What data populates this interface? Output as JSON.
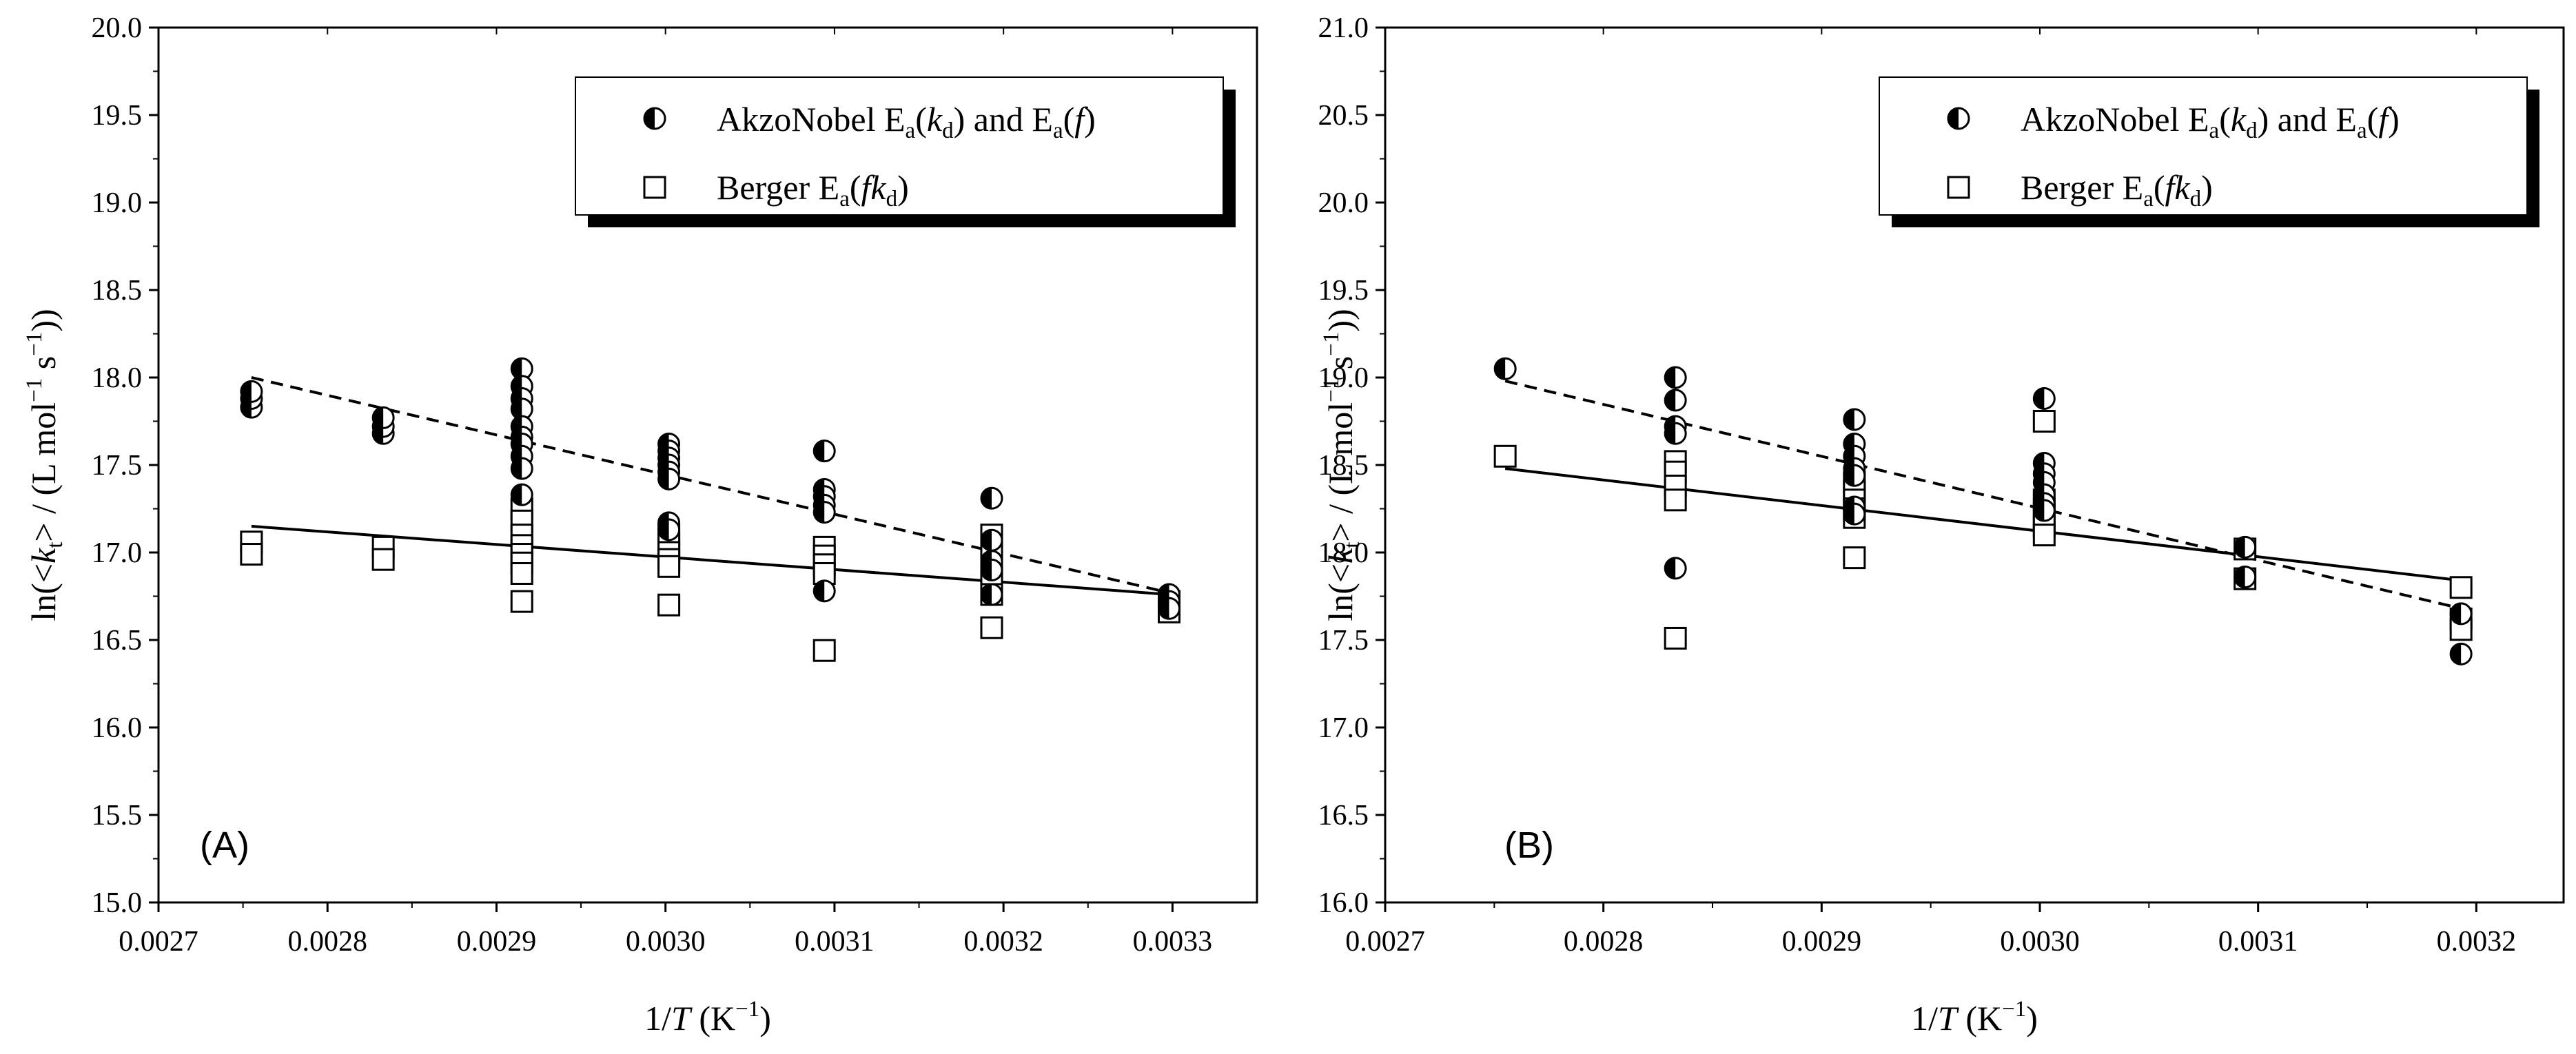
{
  "chart_data": [
    {
      "type": "scatter",
      "panel_label": "(A)",
      "xlabel": "1/T (K⁻¹)",
      "ylabel": "ln(<kt> / (L mol⁻¹ s⁻¹))",
      "xlim": [
        0.0027,
        0.00335
      ],
      "ylim": [
        15.0,
        20.0
      ],
      "x_ticks": [
        "0.0027",
        "0.0028",
        "0.0029",
        "0.0030",
        "0.0031",
        "0.0032",
        "0.0033"
      ],
      "y_ticks": [
        "15.0",
        "15.5",
        "16.0",
        "16.5",
        "17.0",
        "17.5",
        "18.0",
        "18.5",
        "19.0",
        "19.5",
        "20.0"
      ],
      "legend": [
        "AkzoNobel Ea(kd) and Ea(f)",
        "Berger Ea(fkd)"
      ],
      "legend_position": "top-right",
      "series": [
        {
          "name": "AkzoNobel Ea(kd) and Ea(f)",
          "marker": "half-filled-circle",
          "points": [
            [
              0.002755,
              17.83
            ],
            [
              0.002755,
              17.88
            ],
            [
              0.002755,
              17.92
            ],
            [
              0.002833,
              17.68
            ],
            [
              0.002833,
              17.72
            ],
            [
              0.002833,
              17.77
            ],
            [
              0.002915,
              18.05
            ],
            [
              0.002915,
              17.95
            ],
            [
              0.002915,
              17.88
            ],
            [
              0.002915,
              17.82
            ],
            [
              0.002915,
              17.72
            ],
            [
              0.002915,
              17.66
            ],
            [
              0.002915,
              17.62
            ],
            [
              0.002915,
              17.55
            ],
            [
              0.002915,
              17.48
            ],
            [
              0.002915,
              17.33
            ],
            [
              0.003002,
              17.62
            ],
            [
              0.003002,
              17.58
            ],
            [
              0.003002,
              17.54
            ],
            [
              0.003002,
              17.5
            ],
            [
              0.003002,
              17.46
            ],
            [
              0.003002,
              17.42
            ],
            [
              0.003002,
              17.17
            ],
            [
              0.003002,
              17.13
            ],
            [
              0.003094,
              17.58
            ],
            [
              0.003094,
              17.36
            ],
            [
              0.003094,
              17.32
            ],
            [
              0.003094,
              17.27
            ],
            [
              0.003094,
              17.23
            ],
            [
              0.003094,
              16.78
            ],
            [
              0.003193,
              17.31
            ],
            [
              0.003193,
              17.07
            ],
            [
              0.003193,
              16.95
            ],
            [
              0.003193,
              16.9
            ],
            [
              0.003193,
              16.76
            ],
            [
              0.003298,
              16.76
            ],
            [
              0.003298,
              16.72
            ],
            [
              0.003298,
              16.68
            ]
          ],
          "fit_line": {
            "style": "dashed",
            "x": [
              0.002755,
              0.003298
            ],
            "y": [
              18.0,
              16.77
            ]
          }
        },
        {
          "name": "Berger Ea(fkd)",
          "marker": "open-square",
          "points": [
            [
              0.002755,
              17.06
            ],
            [
              0.002755,
              16.99
            ],
            [
              0.002833,
              17.03
            ],
            [
              0.002833,
              16.96
            ],
            [
              0.002915,
              17.25
            ],
            [
              0.002915,
              17.18
            ],
            [
              0.002915,
              17.1
            ],
            [
              0.002915,
              17.04
            ],
            [
              0.002915,
              16.99
            ],
            [
              0.002915,
              16.94
            ],
            [
              0.002915,
              16.88
            ],
            [
              0.002915,
              16.72
            ],
            [
              0.003002,
              17.1
            ],
            [
              0.003002,
              17.05
            ],
            [
              0.003002,
              17.0
            ],
            [
              0.003002,
              16.96
            ],
            [
              0.003002,
              16.92
            ],
            [
              0.003002,
              16.7
            ],
            [
              0.003094,
              17.03
            ],
            [
              0.003094,
              16.98
            ],
            [
              0.003094,
              16.93
            ],
            [
              0.003094,
              16.88
            ],
            [
              0.003094,
              16.44
            ],
            [
              0.003193,
              17.1
            ],
            [
              0.003193,
              17.02
            ],
            [
              0.003193,
              16.88
            ],
            [
              0.003193,
              16.83
            ],
            [
              0.003193,
              16.76
            ],
            [
              0.003193,
              16.57
            ],
            [
              0.003298,
              16.72
            ],
            [
              0.003298,
              16.66
            ]
          ],
          "fit_line": {
            "style": "solid",
            "x": [
              0.002755,
              0.003298
            ],
            "y": [
              17.15,
              16.76
            ]
          }
        }
      ]
    },
    {
      "type": "scatter",
      "panel_label": "(B)",
      "xlabel": "1/T (K⁻¹)",
      "ylabel": "ln(<kt> / (L mol⁻¹ s⁻¹))",
      "xlim": [
        0.0027,
        0.00324
      ],
      "ylim": [
        16.0,
        21.0
      ],
      "x_ticks": [
        "0.0027",
        "0.0028",
        "0.0029",
        "0.0030",
        "0.0031",
        "0.0032"
      ],
      "y_ticks": [
        "16.0",
        "16.5",
        "17.0",
        "17.5",
        "18.0",
        "18.5",
        "19.0",
        "19.5",
        "20.0",
        "20.5",
        "21.0"
      ],
      "legend": [
        "AkzoNobel Ea(kd) and Ea(f)",
        "Berger Ea(fkd)"
      ],
      "legend_position": "top-right",
      "series": [
        {
          "name": "AkzoNobel Ea(kd) and Ea(f)",
          "marker": "half-filled-circle",
          "points": [
            [
              0.002755,
              19.05
            ],
            [
              0.002833,
              19.0
            ],
            [
              0.002833,
              18.87
            ],
            [
              0.002833,
              18.72
            ],
            [
              0.002833,
              18.68
            ],
            [
              0.002833,
              17.91
            ],
            [
              0.002915,
              18.76
            ],
            [
              0.002915,
              18.62
            ],
            [
              0.002915,
              18.55
            ],
            [
              0.002915,
              18.48
            ],
            [
              0.002915,
              18.44
            ],
            [
              0.002915,
              18.26
            ],
            [
              0.002915,
              18.22
            ],
            [
              0.003002,
              18.88
            ],
            [
              0.003002,
              18.51
            ],
            [
              0.003002,
              18.45
            ],
            [
              0.003002,
              18.4
            ],
            [
              0.003002,
              18.33
            ],
            [
              0.003002,
              18.28
            ],
            [
              0.003002,
              18.24
            ],
            [
              0.003094,
              18.03
            ],
            [
              0.003094,
              17.86
            ],
            [
              0.003193,
              17.65
            ],
            [
              0.003193,
              17.42
            ]
          ],
          "fit_line": {
            "style": "dashed",
            "x": [
              0.002755,
              0.003193
            ],
            "y": [
              18.98,
              17.68
            ]
          }
        },
        {
          "name": "Berger Ea(fkd)",
          "marker": "open-square",
          "points": [
            [
              0.002755,
              18.55
            ],
            [
              0.002833,
              18.52
            ],
            [
              0.002833,
              18.46
            ],
            [
              0.002833,
              18.38
            ],
            [
              0.002833,
              18.3
            ],
            [
              0.002833,
              17.51
            ],
            [
              0.002915,
              18.4
            ],
            [
              0.002915,
              18.35
            ],
            [
              0.002915,
              18.3
            ],
            [
              0.002915,
              18.25
            ],
            [
              0.002915,
              18.2
            ],
            [
              0.002915,
              17.97
            ],
            [
              0.003002,
              18.75
            ],
            [
              0.003002,
              18.3
            ],
            [
              0.003002,
              18.25
            ],
            [
              0.003002,
              18.2
            ],
            [
              0.003002,
              18.15
            ],
            [
              0.003002,
              18.1
            ],
            [
              0.003094,
              18.02
            ],
            [
              0.003094,
              17.85
            ],
            [
              0.003193,
              17.8
            ],
            [
              0.003193,
              17.62
            ],
            [
              0.003193,
              17.56
            ]
          ],
          "fit_line": {
            "style": "solid",
            "x": [
              0.002755,
              0.003193
            ],
            "y": [
              18.48,
              17.84
            ]
          }
        }
      ]
    }
  ]
}
